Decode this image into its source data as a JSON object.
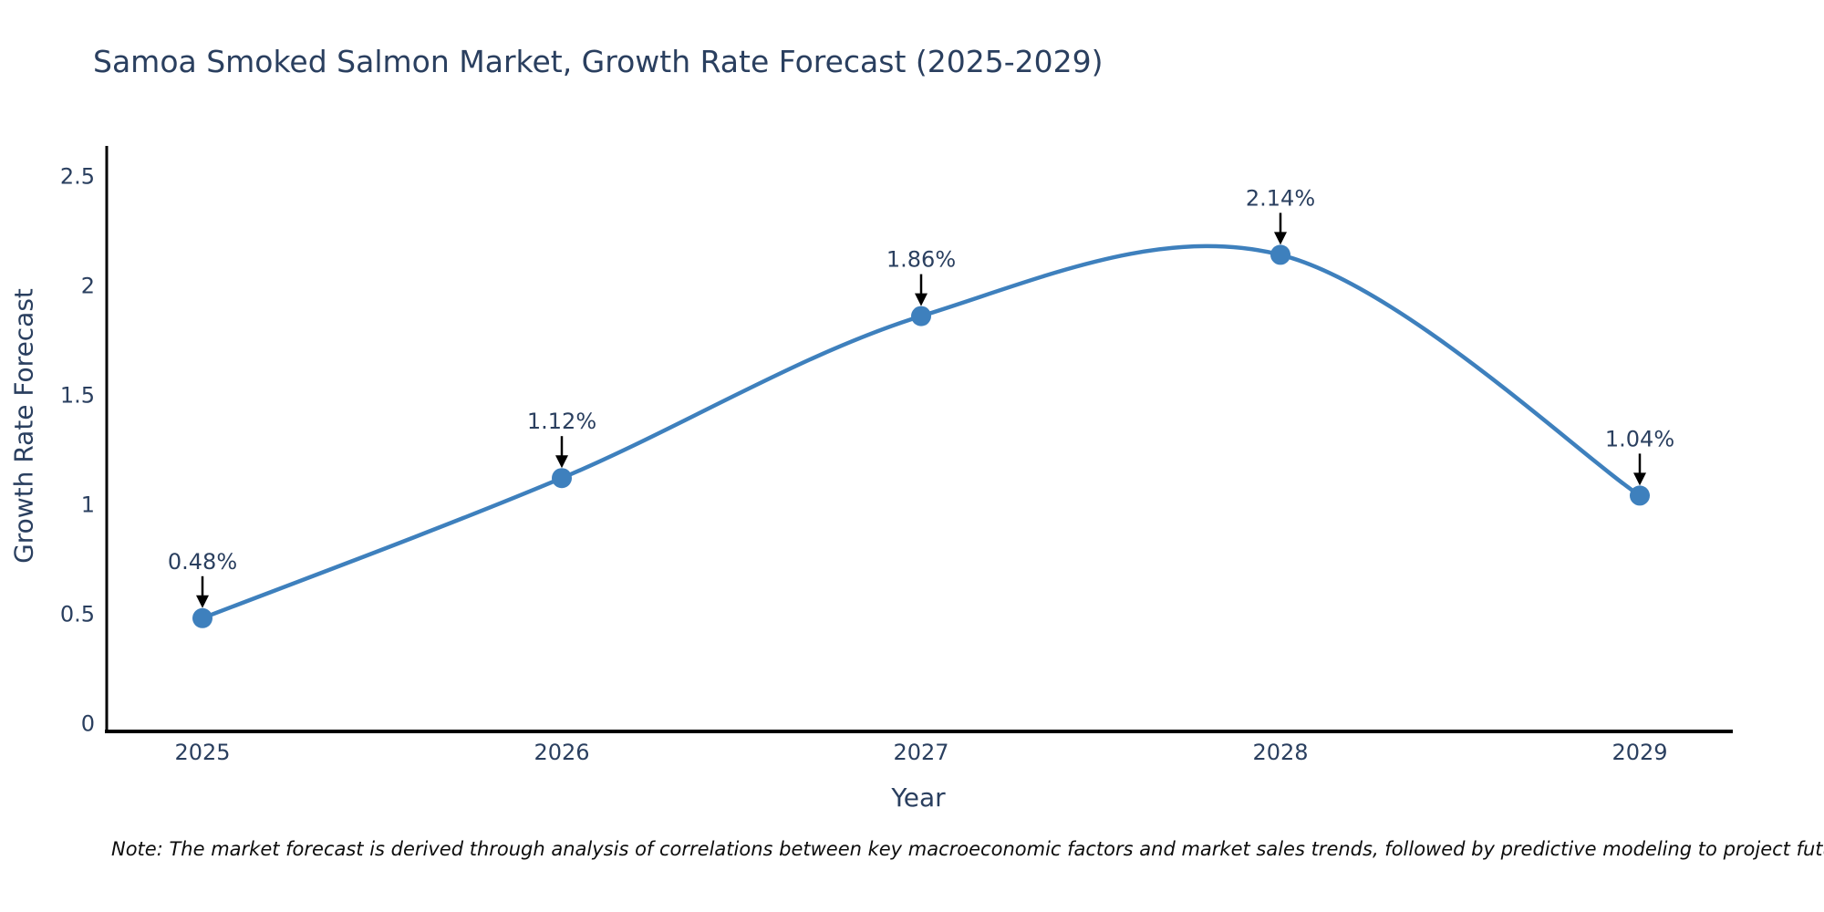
{
  "title": "Samoa Smoked Salmon Market, Growth Rate Forecast (2025-2029)",
  "note": "Note: The market forecast is derived through analysis of correlations between key macroeconomic factors and market sales trends, followed by predictive modeling to project future sales",
  "chart_data": {
    "type": "line",
    "title": "Samoa Smoked Salmon Market, Growth Rate Forecast (2025-2029)",
    "xlabel": "Year",
    "ylabel": "Growth Rate Forecast",
    "x": [
      2025,
      2026,
      2027,
      2028,
      2029
    ],
    "values": [
      0.48,
      1.12,
      1.86,
      2.14,
      1.04
    ],
    "point_labels": [
      "0.48%",
      "1.12%",
      "1.86%",
      "2.14%",
      "1.04%"
    ],
    "xtick_labels": [
      "2025",
      "2026",
      "2027",
      "2028",
      "2029"
    ],
    "yticks": [
      0,
      0.5,
      1,
      1.5,
      2,
      2.5
    ],
    "ytick_labels": [
      "0",
      "0.5",
      "1",
      "1.5",
      "2",
      "2.5"
    ],
    "ylim": [
      0,
      2.5
    ],
    "line_shape": "spline",
    "grid": false,
    "legend_position": "none",
    "colors": {
      "line": "#3e80bd",
      "marker": "#3e80bd",
      "axis": "#000000",
      "text": "#2a3f5f",
      "arrow": "#000000",
      "note_text": "#0d0d0d"
    }
  }
}
